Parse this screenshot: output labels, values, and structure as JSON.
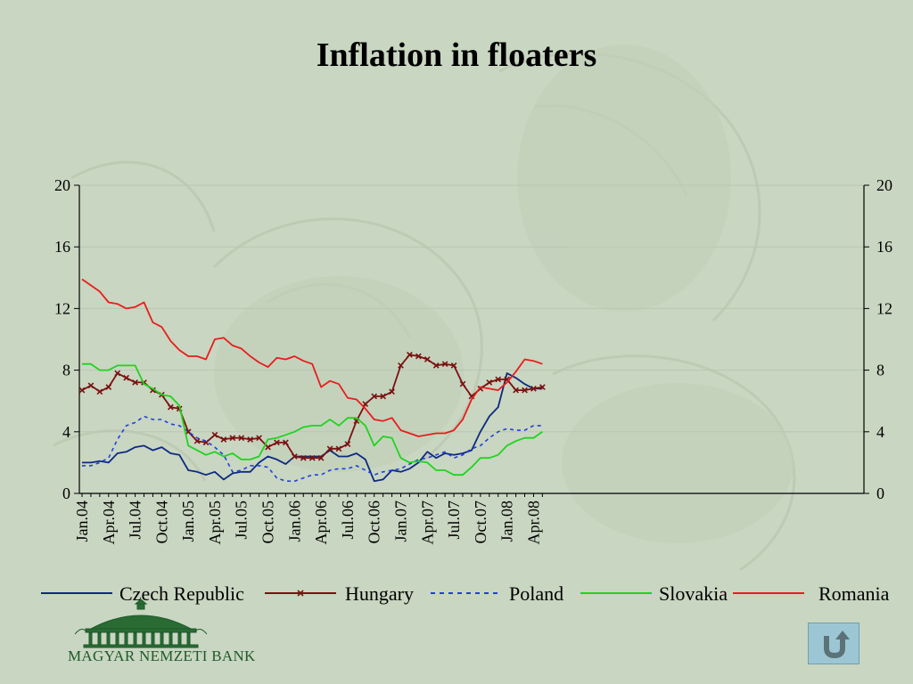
{
  "page": {
    "title": "Inflation in floaters"
  },
  "logo": {
    "text": "MAGYAR NEMZETI BANK",
    "icon": "bank-building-icon"
  },
  "nav": {
    "back_icon": "return-arrow-icon"
  },
  "colors": {
    "background": "#c9d6c1",
    "czech": "#0d2a80",
    "hungary": "#7a1010",
    "poland": "#1f3fe0",
    "slovakia": "#1ed41e",
    "romania": "#ea1c1c"
  },
  "chart_data": {
    "type": "line",
    "title": "Inflation in floaters",
    "ylim": [
      0,
      20
    ],
    "yticks": [
      0,
      4,
      8,
      12,
      16,
      20
    ],
    "y2ticks": [
      0,
      4,
      8,
      12,
      16,
      20
    ],
    "grid": true,
    "legend_position": "bottom",
    "x": [
      "Jan.04",
      "Feb.04",
      "Mar.04",
      "Apr.04",
      "May.04",
      "Jun.04",
      "Jul.04",
      "Aug.04",
      "Sep.04",
      "Oct.04",
      "Nov.04",
      "Dec.04",
      "Jan.05",
      "Feb.05",
      "Mar.05",
      "Apr.05",
      "May.05",
      "Jun.05",
      "Jul.05",
      "Aug.05",
      "Sep.05",
      "Oct.05",
      "Nov.05",
      "Dec.05",
      "Jan.06",
      "Feb.06",
      "Mar.06",
      "Apr.06",
      "May.06",
      "Jun.06",
      "Jul.06",
      "Aug.06",
      "Sep.06",
      "Oct.06",
      "Nov.06",
      "Dec.06",
      "Jan.07",
      "Feb.07",
      "Mar.07",
      "Apr.07",
      "May.07",
      "Jun.07",
      "Jul.07",
      "Aug.07",
      "Sep.07",
      "Oct.07",
      "Nov.07",
      "Dec.07",
      "Jan.08",
      "Feb.08",
      "Mar.08",
      "Apr.08",
      "May.08"
    ],
    "xtick_labels": [
      "Jan.04",
      "Apr.04",
      "Jul.04",
      "Oct.04",
      "Jan.05",
      "Apr.05",
      "Jul.05",
      "Oct.05",
      "Jan.06",
      "Apr.06",
      "Jul.06",
      "Oct.06",
      "Jan.07",
      "Apr.07",
      "Jul.07",
      "Oct.07",
      "Jan.08",
      "Apr.08"
    ],
    "series": [
      {
        "name": "Czech Republic",
        "key": "czech",
        "marker": "none",
        "dash": "solid",
        "values": [
          2.0,
          2.0,
          2.1,
          2.0,
          2.6,
          2.7,
          3.0,
          3.1,
          2.8,
          3.0,
          2.6,
          2.5,
          1.5,
          1.4,
          1.2,
          1.4,
          0.9,
          1.3,
          1.4,
          1.4,
          2.0,
          2.4,
          2.2,
          1.9,
          2.4,
          2.4,
          2.4,
          2.4,
          2.8,
          2.4,
          2.4,
          2.6,
          2.2,
          0.8,
          0.9,
          1.5,
          1.4,
          1.6,
          2.0,
          2.7,
          2.3,
          2.6,
          2.5,
          2.6,
          2.8,
          4.0,
          5.0,
          5.6,
          7.8,
          7.5,
          7.1,
          6.8,
          6.8
        ]
      },
      {
        "name": "Hungary",
        "key": "hungary",
        "marker": "x",
        "dash": "solid",
        "values": [
          6.7,
          7.0,
          6.6,
          6.9,
          7.8,
          7.5,
          7.2,
          7.2,
          6.7,
          6.4,
          5.6,
          5.5,
          4.0,
          3.4,
          3.3,
          3.8,
          3.5,
          3.6,
          3.6,
          3.5,
          3.6,
          3.0,
          3.3,
          3.3,
          2.4,
          2.3,
          2.3,
          2.3,
          2.9,
          2.9,
          3.2,
          4.7,
          5.8,
          6.3,
          6.3,
          6.6,
          8.3,
          9.0,
          8.9,
          8.7,
          8.3,
          8.4,
          8.3,
          7.1,
          6.3,
          6.8,
          7.2,
          7.4,
          7.4,
          6.7,
          6.7,
          6.8,
          6.9
        ]
      },
      {
        "name": "Poland",
        "key": "poland",
        "marker": "none",
        "dash": "dashed",
        "values": [
          1.8,
          1.8,
          2.0,
          2.3,
          3.5,
          4.4,
          4.6,
          5.0,
          4.8,
          4.8,
          4.5,
          4.4,
          4.0,
          3.6,
          3.4,
          3.0,
          2.5,
          1.4,
          1.5,
          1.8,
          1.8,
          1.7,
          1.0,
          0.8,
          0.8,
          1.0,
          1.2,
          1.2,
          1.5,
          1.6,
          1.6,
          1.8,
          1.5,
          1.2,
          1.4,
          1.5,
          1.6,
          1.9,
          2.2,
          2.3,
          2.5,
          2.7,
          2.3,
          2.5,
          2.9,
          3.1,
          3.6,
          4.0,
          4.2,
          4.1,
          4.1,
          4.4,
          4.4
        ]
      },
      {
        "name": "Slovakia",
        "key": "slovakia",
        "marker": "none",
        "dash": "solid",
        "values": [
          8.4,
          8.4,
          8.0,
          8.0,
          8.3,
          8.3,
          8.3,
          7.1,
          6.8,
          6.4,
          6.3,
          5.7,
          3.1,
          2.8,
          2.5,
          2.7,
          2.4,
          2.6,
          2.2,
          2.2,
          2.4,
          3.5,
          3.6,
          3.8,
          4.0,
          4.3,
          4.4,
          4.4,
          4.8,
          4.4,
          4.9,
          4.9,
          4.4,
          3.1,
          3.7,
          3.6,
          2.3,
          2.0,
          2.1,
          2.0,
          1.5,
          1.5,
          1.2,
          1.2,
          1.7,
          2.3,
          2.3,
          2.5,
          3.1,
          3.4,
          3.6,
          3.6,
          4.0
        ]
      },
      {
        "name": "Romania",
        "key": "romania",
        "marker": "none",
        "dash": "solid",
        "values": [
          13.9,
          13.5,
          13.1,
          12.4,
          12.3,
          12.0,
          12.1,
          12.4,
          11.1,
          10.8,
          9.9,
          9.3,
          8.9,
          8.9,
          8.7,
          10.0,
          10.1,
          9.6,
          9.4,
          8.9,
          8.5,
          8.2,
          8.8,
          8.7,
          8.9,
          8.6,
          8.4,
          6.9,
          7.3,
          7.1,
          6.2,
          6.1,
          5.5,
          4.8,
          4.7,
          4.9,
          4.1,
          3.9,
          3.7,
          3.8,
          3.9,
          3.9,
          4.1,
          4.8,
          6.1,
          6.9,
          6.8,
          6.7,
          7.2,
          7.9,
          8.7,
          8.6,
          8.4
        ]
      }
    ]
  }
}
